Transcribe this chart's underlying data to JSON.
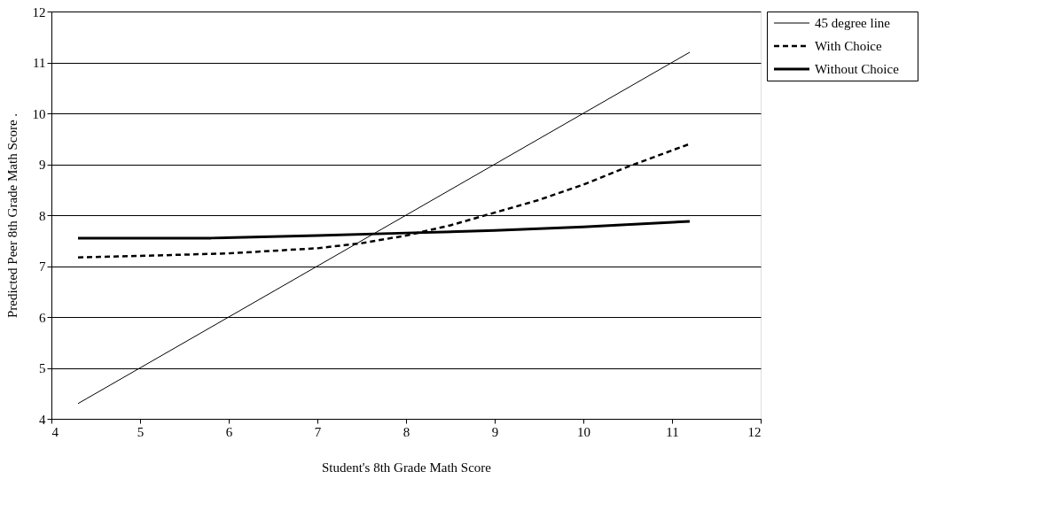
{
  "chart_data": {
    "type": "line",
    "xlabel": "Student's 8th Grade Math Score",
    "ylabel": "Predicted Peer 8th Grade Math Score .",
    "xlim": [
      4,
      12
    ],
    "xticks": [
      4,
      5,
      6,
      7,
      8,
      9,
      10,
      11,
      12
    ],
    "ylim": [
      4,
      12
    ],
    "yticks": [
      4,
      5,
      6,
      7,
      8,
      9,
      10,
      11,
      12
    ],
    "grid": "y",
    "legend": "right",
    "marker": "none",
    "series": [
      {
        "name": "45 degree line",
        "color": "#000000",
        "line_style": "solid",
        "x": [
          4.3,
          11.2
        ],
        "values": [
          4.3,
          11.2
        ]
      },
      {
        "name": "With Choice",
        "color": "#000000",
        "line_style": "dashed",
        "x": [
          4.3,
          5,
          6,
          7,
          7.5,
          8,
          8.5,
          9,
          9.5,
          10,
          10.5,
          11.2
        ],
        "values": [
          7.17,
          7.2,
          7.25,
          7.35,
          7.45,
          7.6,
          7.8,
          8.05,
          8.3,
          8.6,
          8.95,
          9.4
        ]
      },
      {
        "name": "Without Choice",
        "color": "#000000",
        "line_style": "solid",
        "x": [
          4.3,
          5.8,
          7,
          8,
          9,
          10,
          11.2
        ],
        "values": [
          7.55,
          7.55,
          7.6,
          7.65,
          7.7,
          7.77,
          7.88
        ]
      }
    ]
  }
}
